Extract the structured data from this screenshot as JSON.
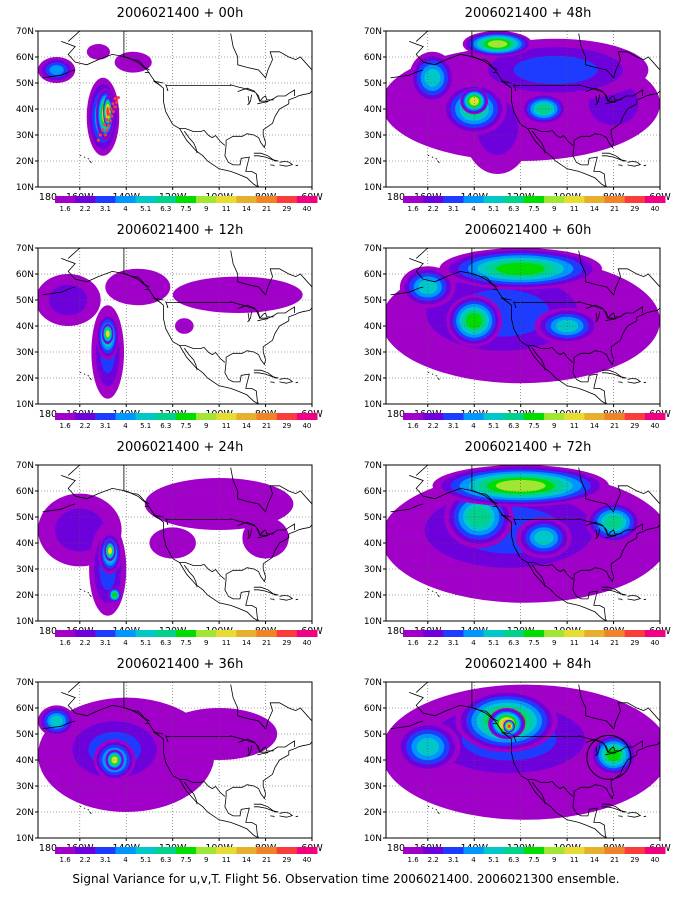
{
  "figure": {
    "caption": "Signal Variance for u,v,T. Flight 56. Observation time 2006021400. 2006021300 ensemble."
  },
  "axes": {
    "lat_labels": [
      "10N",
      "20N",
      "30N",
      "40N",
      "50N",
      "60N",
      "70N"
    ],
    "lon_labels": [
      "180",
      "160W",
      "140W",
      "120W",
      "100W",
      "80W",
      "60W"
    ]
  },
  "colorbar": {
    "labels": [
      "1.6",
      "2.2",
      "3.1",
      "4",
      "5.1",
      "6.3",
      "7.5",
      "9",
      "11",
      "14",
      "21",
      "29",
      "40"
    ],
    "colors": [
      "#a000c8",
      "#6e00dc",
      "#1e3cff",
      "#0096ff",
      "#00c8c8",
      "#00d28c",
      "#00dc00",
      "#a0e632",
      "#e6dc32",
      "#e6af2d",
      "#f08228",
      "#fa3c3c",
      "#f00082"
    ]
  },
  "map": {
    "lon_range": [
      -178,
      -60
    ],
    "lat_range": [
      10,
      70
    ],
    "grid": "dotted",
    "coastline_color": "#000000"
  },
  "panels": [
    {
      "title": "2006021400 + 00h",
      "lead": "00h",
      "blobs": [
        {
          "lon": -170,
          "lat": 55,
          "rx": 8,
          "ry": 5,
          "level": 3
        },
        {
          "lon": -150,
          "lat": 37,
          "rx": 7,
          "ry": 15,
          "level": 4
        },
        {
          "lon": -149,
          "lat": 38,
          "rx": 4,
          "ry": 10,
          "level": 8
        },
        {
          "lon": -148,
          "lat": 39,
          "rx": 2,
          "ry": 6,
          "level": 11
        },
        {
          "lon": -137,
          "lat": 58,
          "rx": 8,
          "ry": 4,
          "level": 0
        },
        {
          "lon": -152,
          "lat": 62,
          "rx": 5,
          "ry": 3,
          "level": 0
        }
      ]
    },
    {
      "title": "2006021400 + 48h",
      "lead": "48h",
      "blobs": [
        {
          "lon": -120,
          "lat": 42,
          "rx": 60,
          "ry": 22,
          "level": 0
        },
        {
          "lon": -130,
          "lat": 33,
          "rx": 15,
          "ry": 18,
          "level": 1
        },
        {
          "lon": -105,
          "lat": 55,
          "rx": 40,
          "ry": 12,
          "level": 2
        },
        {
          "lon": -140,
          "lat": 40,
          "rx": 14,
          "ry": 10,
          "level": 5
        },
        {
          "lon": -140,
          "lat": 43,
          "rx": 6,
          "ry": 5,
          "level": 8
        },
        {
          "lon": -110,
          "lat": 40,
          "rx": 10,
          "ry": 6,
          "level": 5
        },
        {
          "lon": -158,
          "lat": 52,
          "rx": 10,
          "ry": 10,
          "level": 4
        },
        {
          "lon": -80,
          "lat": 42,
          "rx": 18,
          "ry": 14,
          "level": 1
        },
        {
          "lon": -130,
          "lat": 65,
          "rx": 15,
          "ry": 5,
          "level": 7
        }
      ]
    },
    {
      "title": "2006021400 + 12h",
      "lead": "12h",
      "blobs": [
        {
          "lon": -165,
          "lat": 50,
          "rx": 14,
          "ry": 10,
          "level": 1
        },
        {
          "lon": -148,
          "lat": 30,
          "rx": 7,
          "ry": 18,
          "level": 2
        },
        {
          "lon": -148,
          "lat": 36,
          "rx": 5,
          "ry": 9,
          "level": 5
        },
        {
          "lon": -148,
          "lat": 37,
          "rx": 2.5,
          "ry": 4,
          "level": 8
        },
        {
          "lon": -92,
          "lat": 52,
          "rx": 28,
          "ry": 7,
          "level": 0
        },
        {
          "lon": -135,
          "lat": 55,
          "rx": 14,
          "ry": 7,
          "level": 0
        },
        {
          "lon": -115,
          "lat": 40,
          "rx": 4,
          "ry": 3,
          "level": 0
        }
      ]
    },
    {
      "title": "2006021400 + 60h",
      "lead": "60h",
      "blobs": [
        {
          "lon": -120,
          "lat": 42,
          "rx": 60,
          "ry": 24,
          "level": 0
        },
        {
          "lon": -128,
          "lat": 45,
          "rx": 45,
          "ry": 20,
          "level": 2
        },
        {
          "lon": -140,
          "lat": 42,
          "rx": 12,
          "ry": 10,
          "level": 6
        },
        {
          "lon": -120,
          "lat": 62,
          "rx": 35,
          "ry": 8,
          "level": 6
        },
        {
          "lon": -160,
          "lat": 55,
          "rx": 12,
          "ry": 8,
          "level": 4
        },
        {
          "lon": -100,
          "lat": 40,
          "rx": 14,
          "ry": 7,
          "level": 4
        }
      ]
    },
    {
      "title": "2006021400 + 24h",
      "lead": "24h",
      "blobs": [
        {
          "lon": -160,
          "lat": 45,
          "rx": 18,
          "ry": 14,
          "level": 1
        },
        {
          "lon": -148,
          "lat": 30,
          "rx": 8,
          "ry": 18,
          "level": 2
        },
        {
          "lon": -147,
          "lat": 36,
          "rx": 5,
          "ry": 8,
          "level": 5
        },
        {
          "lon": -147,
          "lat": 37,
          "rx": 2.5,
          "ry": 4,
          "level": 8
        },
        {
          "lon": -145,
          "lat": 20,
          "rx": 3,
          "ry": 3,
          "level": 6
        },
        {
          "lon": -100,
          "lat": 55,
          "rx": 32,
          "ry": 10,
          "level": 0
        },
        {
          "lon": -120,
          "lat": 40,
          "rx": 10,
          "ry": 6,
          "level": 0
        },
        {
          "lon": -80,
          "lat": 42,
          "rx": 10,
          "ry": 8,
          "level": 0
        }
      ]
    },
    {
      "title": "2006021400 + 72h",
      "lead": "72h",
      "blobs": [
        {
          "lon": -118,
          "lat": 42,
          "rx": 62,
          "ry": 25,
          "level": 0
        },
        {
          "lon": -125,
          "lat": 45,
          "rx": 50,
          "ry": 20,
          "level": 2
        },
        {
          "lon": -138,
          "lat": 50,
          "rx": 15,
          "ry": 12,
          "level": 5
        },
        {
          "lon": -120,
          "lat": 62,
          "rx": 38,
          "ry": 8,
          "level": 7
        },
        {
          "lon": -110,
          "lat": 42,
          "rx": 12,
          "ry": 8,
          "level": 4
        },
        {
          "lon": -80,
          "lat": 48,
          "rx": 12,
          "ry": 8,
          "level": 5
        }
      ]
    },
    {
      "title": "2006021400 + 36h",
      "lead": "36h",
      "blobs": [
        {
          "lon": -140,
          "lat": 42,
          "rx": 38,
          "ry": 22,
          "level": 0
        },
        {
          "lon": -145,
          "lat": 44,
          "rx": 25,
          "ry": 15,
          "level": 2
        },
        {
          "lon": -145,
          "lat": 40,
          "rx": 9,
          "ry": 8,
          "level": 5
        },
        {
          "lon": -145,
          "lat": 40,
          "rx": 4,
          "ry": 4,
          "level": 8
        },
        {
          "lon": -170,
          "lat": 55,
          "rx": 8,
          "ry": 6,
          "level": 4
        },
        {
          "lon": -100,
          "lat": 50,
          "rx": 25,
          "ry": 10,
          "level": 0
        }
      ]
    },
    {
      "title": "2006021400 + 84h",
      "lead": "84h",
      "blobs": [
        {
          "lon": -118,
          "lat": 43,
          "rx": 62,
          "ry": 26,
          "level": 0
        },
        {
          "lon": -125,
          "lat": 48,
          "rx": 45,
          "ry": 18,
          "level": 2
        },
        {
          "lon": -126,
          "lat": 55,
          "rx": 22,
          "ry": 12,
          "level": 7
        },
        {
          "lon": -126,
          "lat": 54,
          "rx": 8,
          "ry": 6,
          "level": 9
        },
        {
          "lon": -125,
          "lat": 53,
          "rx": 2.5,
          "ry": 2.5,
          "level": 11
        },
        {
          "lon": -80,
          "lat": 42,
          "rx": 10,
          "ry": 8,
          "level": 6
        },
        {
          "lon": -160,
          "lat": 45,
          "rx": 14,
          "ry": 10,
          "level": 4
        }
      ]
    }
  ]
}
